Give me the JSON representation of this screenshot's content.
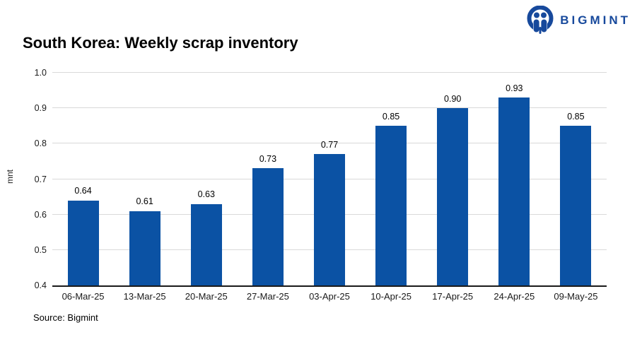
{
  "logo": {
    "text": "BIGMINT",
    "color": "#17499c",
    "icon": "bigmint-people-circle-icon"
  },
  "title": "South Korea: Weekly scrap inventory",
  "source": "Source: Bigmint",
  "chart_data": {
    "type": "bar",
    "title": "South Korea: Weekly scrap inventory",
    "categories": [
      "06-Mar-25",
      "13-Mar-25",
      "20-Mar-25",
      "27-Mar-25",
      "03-Apr-25",
      "10-Apr-25",
      "17-Apr-25",
      "24-Apr-25",
      "09-May-25"
    ],
    "values": [
      0.64,
      0.61,
      0.63,
      0.73,
      0.77,
      0.85,
      0.9,
      0.93,
      0.85
    ],
    "value_labels": [
      "0.64",
      "0.61",
      "0.63",
      "0.73",
      "0.77",
      "0.85",
      "0.90",
      "0.93",
      "0.85"
    ],
    "xlabel": "",
    "ylabel": "mnt",
    "ylim": [
      0.4,
      1.0
    ],
    "yticks": [
      0.4,
      0.5,
      0.6,
      0.7,
      0.8,
      0.9,
      1.0
    ],
    "ytick_labels": [
      "0.4",
      "0.5",
      "0.6",
      "0.7",
      "0.8",
      "0.9",
      "1.0"
    ],
    "grid": "horizontal",
    "legend": "none",
    "bar_color": "#0b52a4",
    "grid_color": "#d9d9d9",
    "axis_color": "#1a1a1a"
  }
}
